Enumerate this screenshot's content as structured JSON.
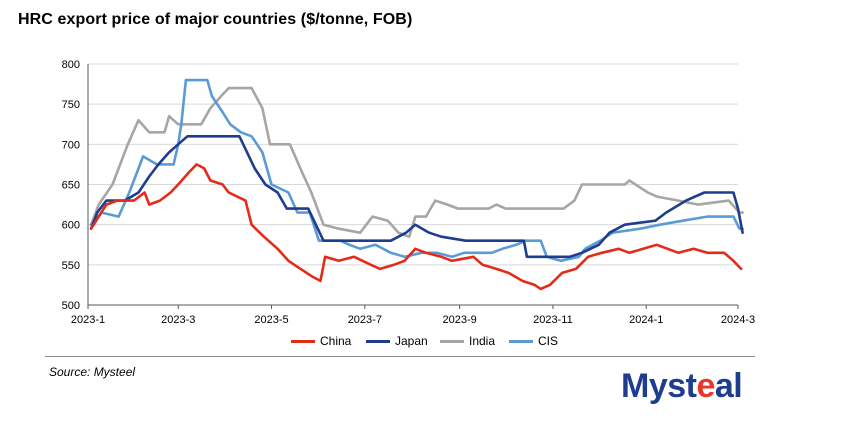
{
  "title": "HRC export price of major countries ($/tonne, FOB)",
  "source": "Source: Mysteel",
  "logo_text": "Mysteel",
  "colors": {
    "China": "#e52b18",
    "Japan": "#1f3d8f",
    "India": "#a6a6a6",
    "CIS": "#5b9bd5",
    "grid": "#d9d9d9",
    "axis": "#595959"
  },
  "chart_data": {
    "type": "line",
    "title": "HRC export price of major countries ($/tonne, FOB)",
    "xlabel": "",
    "ylabel": "",
    "ylim": [
      500,
      800
    ],
    "yticks": [
      500,
      550,
      600,
      650,
      700,
      750,
      800
    ],
    "xlim": [
      "2023-01-01",
      "2024-03-01"
    ],
    "xticks": [
      {
        "date": "2023-01-01",
        "label": "2023-1"
      },
      {
        "date": "2023-03-01",
        "label": "2023-3"
      },
      {
        "date": "2023-05-01",
        "label": "2023-5"
      },
      {
        "date": "2023-07-01",
        "label": "2023-7"
      },
      {
        "date": "2023-09-01",
        "label": "2023-9"
      },
      {
        "date": "2023-11-01",
        "label": "2023-11"
      },
      {
        "date": "2024-01-01",
        "label": "2024-1"
      },
      {
        "date": "2024-03-01",
        "label": "2024-3"
      }
    ],
    "grid": true,
    "legend_position": "bottom",
    "series": [
      {
        "name": "China",
        "points": [
          [
            "2023-01-03",
            595
          ],
          [
            "2023-01-08",
            610
          ],
          [
            "2023-01-13",
            625
          ],
          [
            "2023-01-20",
            630
          ],
          [
            "2023-01-31",
            630
          ],
          [
            "2023-02-07",
            640
          ],
          [
            "2023-02-10",
            625
          ],
          [
            "2023-02-17",
            630
          ],
          [
            "2023-02-24",
            640
          ],
          [
            "2023-03-01",
            650
          ],
          [
            "2023-03-08",
            665
          ],
          [
            "2023-03-13",
            675
          ],
          [
            "2023-03-18",
            670
          ],
          [
            "2023-03-22",
            655
          ],
          [
            "2023-03-30",
            650
          ],
          [
            "2023-04-03",
            640
          ],
          [
            "2023-04-14",
            630
          ],
          [
            "2023-04-18",
            600
          ],
          [
            "2023-04-26",
            585
          ],
          [
            "2023-05-05",
            570
          ],
          [
            "2023-05-12",
            555
          ],
          [
            "2023-05-20",
            545
          ],
          [
            "2023-05-28",
            535
          ],
          [
            "2023-06-02",
            530
          ],
          [
            "2023-06-05",
            560
          ],
          [
            "2023-06-14",
            555
          ],
          [
            "2023-06-24",
            560
          ],
          [
            "2023-07-05",
            550
          ],
          [
            "2023-07-11",
            545
          ],
          [
            "2023-07-20",
            550
          ],
          [
            "2023-07-27",
            555
          ],
          [
            "2023-08-03",
            570
          ],
          [
            "2023-08-10",
            565
          ],
          [
            "2023-08-20",
            560
          ],
          [
            "2023-08-27",
            555
          ],
          [
            "2023-09-10",
            560
          ],
          [
            "2023-09-16",
            550
          ],
          [
            "2023-09-25",
            545
          ],
          [
            "2023-10-03",
            540
          ],
          [
            "2023-10-12",
            530
          ],
          [
            "2023-10-20",
            525
          ],
          [
            "2023-10-24",
            520
          ],
          [
            "2023-10-30",
            525
          ],
          [
            "2023-11-07",
            540
          ],
          [
            "2023-11-16",
            545
          ],
          [
            "2023-11-24",
            560
          ],
          [
            "2023-12-03",
            565
          ],
          [
            "2023-12-14",
            570
          ],
          [
            "2023-12-21",
            565
          ],
          [
            "2023-12-30",
            570
          ],
          [
            "2024-01-08",
            575
          ],
          [
            "2024-01-15",
            570
          ],
          [
            "2024-01-22",
            565
          ],
          [
            "2024-02-01",
            570
          ],
          [
            "2024-02-10",
            565
          ],
          [
            "2024-02-21",
            565
          ],
          [
            "2024-02-27",
            555
          ],
          [
            "2024-03-03",
            545
          ]
        ]
      },
      {
        "name": "Japan",
        "points": [
          [
            "2023-01-03",
            595
          ],
          [
            "2023-01-07",
            615
          ],
          [
            "2023-01-13",
            630
          ],
          [
            "2023-01-25",
            630
          ],
          [
            "2023-02-03",
            640
          ],
          [
            "2023-02-10",
            660
          ],
          [
            "2023-02-16",
            675
          ],
          [
            "2023-02-23",
            690
          ],
          [
            "2023-03-01",
            700
          ],
          [
            "2023-03-07",
            710
          ],
          [
            "2023-04-10",
            710
          ],
          [
            "2023-04-15",
            690
          ],
          [
            "2023-04-20",
            670
          ],
          [
            "2023-04-27",
            650
          ],
          [
            "2023-05-05",
            640
          ],
          [
            "2023-05-11",
            620
          ],
          [
            "2023-05-25",
            620
          ],
          [
            "2023-06-04",
            580
          ],
          [
            "2023-07-18",
            580
          ],
          [
            "2023-07-28",
            590
          ],
          [
            "2023-08-03",
            600
          ],
          [
            "2023-08-12",
            590
          ],
          [
            "2023-08-20",
            585
          ],
          [
            "2023-09-05",
            580
          ],
          [
            "2023-10-13",
            580
          ],
          [
            "2023-10-15",
            560
          ],
          [
            "2023-11-12",
            560
          ],
          [
            "2023-11-20",
            565
          ],
          [
            "2023-12-01",
            575
          ],
          [
            "2023-12-08",
            590
          ],
          [
            "2023-12-18",
            600
          ],
          [
            "2024-01-07",
            605
          ],
          [
            "2024-01-14",
            615
          ],
          [
            "2024-01-27",
            630
          ],
          [
            "2024-02-08",
            640
          ],
          [
            "2024-02-27",
            640
          ],
          [
            "2024-03-01",
            620
          ],
          [
            "2024-03-04",
            590
          ]
        ]
      },
      {
        "name": "India",
        "points": [
          [
            "2023-01-03",
            600
          ],
          [
            "2023-01-08",
            625
          ],
          [
            "2023-01-17",
            650
          ],
          [
            "2023-01-27",
            700
          ],
          [
            "2023-02-03",
            730
          ],
          [
            "2023-02-10",
            715
          ],
          [
            "2023-02-20",
            715
          ],
          [
            "2023-02-23",
            735
          ],
          [
            "2023-03-01",
            725
          ],
          [
            "2023-03-16",
            725
          ],
          [
            "2023-03-22",
            745
          ],
          [
            "2023-03-29",
            760
          ],
          [
            "2023-04-03",
            770
          ],
          [
            "2023-04-18",
            770
          ],
          [
            "2023-04-25",
            745
          ],
          [
            "2023-04-30",
            700
          ],
          [
            "2023-05-13",
            700
          ],
          [
            "2023-05-21",
            665
          ],
          [
            "2023-05-27",
            640
          ],
          [
            "2023-06-04",
            600
          ],
          [
            "2023-06-14",
            595
          ],
          [
            "2023-06-28",
            590
          ],
          [
            "2023-07-06",
            610
          ],
          [
            "2023-07-16",
            605
          ],
          [
            "2023-07-23",
            590
          ],
          [
            "2023-07-30",
            585
          ],
          [
            "2023-08-03",
            610
          ],
          [
            "2023-08-10",
            610
          ],
          [
            "2023-08-16",
            630
          ],
          [
            "2023-08-24",
            625
          ],
          [
            "2023-08-31",
            620
          ],
          [
            "2023-09-20",
            620
          ],
          [
            "2023-09-25",
            625
          ],
          [
            "2023-10-01",
            620
          ],
          [
            "2023-11-08",
            620
          ],
          [
            "2023-11-15",
            630
          ],
          [
            "2023-11-20",
            650
          ],
          [
            "2023-12-18",
            650
          ],
          [
            "2023-12-21",
            655
          ],
          [
            "2023-12-29",
            645
          ],
          [
            "2024-01-02",
            640
          ],
          [
            "2024-01-08",
            635
          ],
          [
            "2024-01-22",
            630
          ],
          [
            "2024-02-04",
            625
          ],
          [
            "2024-02-24",
            630
          ],
          [
            "2024-03-02",
            615
          ],
          [
            "2024-03-04",
            615
          ]
        ]
      },
      {
        "name": "CIS",
        "points": [
          [
            "2023-01-03",
            600
          ],
          [
            "2023-01-10",
            615
          ],
          [
            "2023-01-21",
            610
          ],
          [
            "2023-01-28",
            640
          ],
          [
            "2023-02-06",
            685
          ],
          [
            "2023-02-15",
            675
          ],
          [
            "2023-02-26",
            675
          ],
          [
            "2023-03-01",
            700
          ],
          [
            "2023-03-03",
            725
          ],
          [
            "2023-03-06",
            780
          ],
          [
            "2023-03-20",
            780
          ],
          [
            "2023-03-23",
            760
          ],
          [
            "2023-03-30",
            740
          ],
          [
            "2023-04-04",
            725
          ],
          [
            "2023-04-11",
            715
          ],
          [
            "2023-04-18",
            710
          ],
          [
            "2023-04-25",
            690
          ],
          [
            "2023-05-01",
            650
          ],
          [
            "2023-05-12",
            640
          ],
          [
            "2023-05-18",
            615
          ],
          [
            "2023-05-26",
            615
          ],
          [
            "2023-06-01",
            580
          ],
          [
            "2023-06-15",
            580
          ],
          [
            "2023-06-21",
            575
          ],
          [
            "2023-06-28",
            570
          ],
          [
            "2023-07-08",
            575
          ],
          [
            "2023-07-18",
            565
          ],
          [
            "2023-07-27",
            560
          ],
          [
            "2023-08-07",
            565
          ],
          [
            "2023-08-17",
            565
          ],
          [
            "2023-08-27",
            560
          ],
          [
            "2023-09-04",
            565
          ],
          [
            "2023-09-22",
            565
          ],
          [
            "2023-09-29",
            570
          ],
          [
            "2023-10-08",
            575
          ],
          [
            "2023-10-14",
            580
          ],
          [
            "2023-10-24",
            580
          ],
          [
            "2023-10-28",
            560
          ],
          [
            "2023-11-06",
            555
          ],
          [
            "2023-11-18",
            560
          ],
          [
            "2023-11-22",
            570
          ],
          [
            "2023-12-02",
            580
          ],
          [
            "2023-12-10",
            590
          ],
          [
            "2023-12-28",
            595
          ],
          [
            "2024-01-10",
            600
          ],
          [
            "2024-01-25",
            605
          ],
          [
            "2024-02-10",
            610
          ],
          [
            "2024-02-27",
            610
          ],
          [
            "2024-03-02",
            595
          ],
          [
            "2024-03-04",
            595
          ]
        ]
      }
    ]
  }
}
